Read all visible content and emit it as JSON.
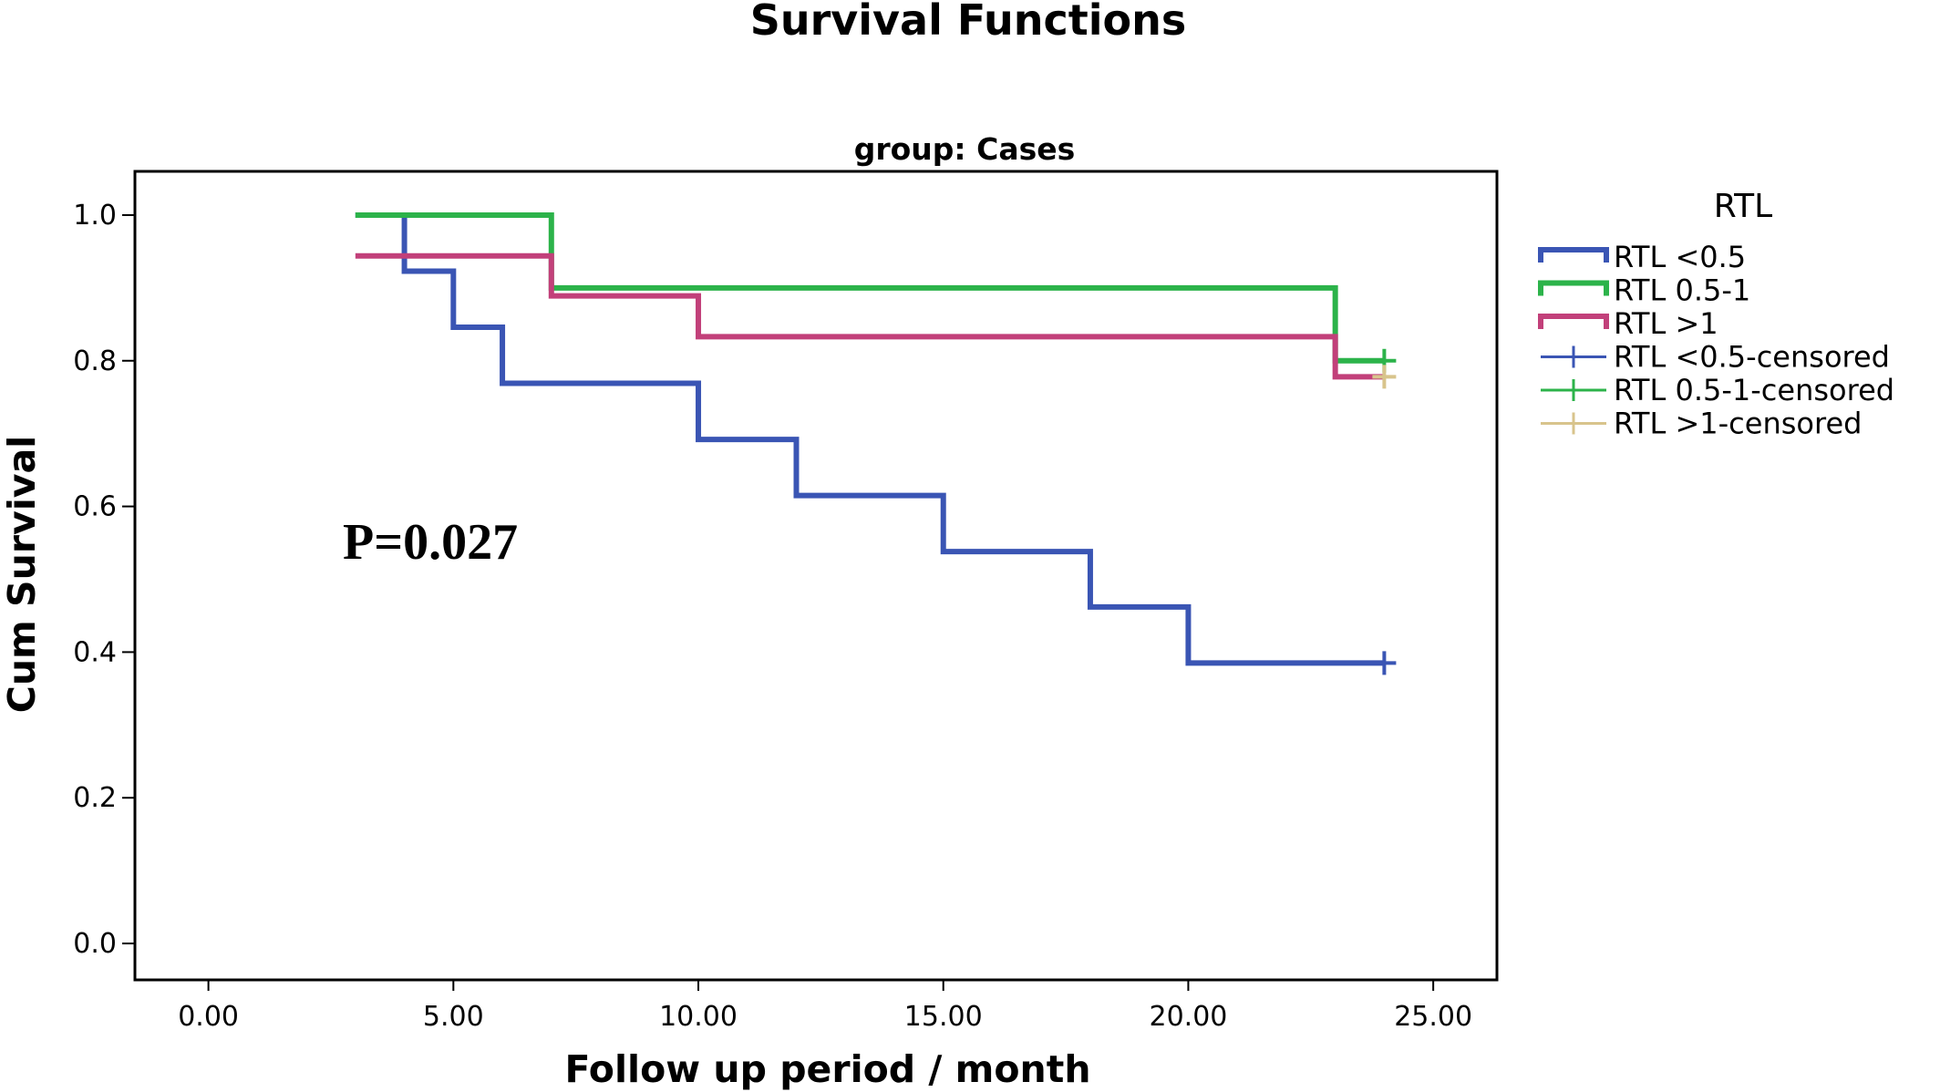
{
  "chart_data": {
    "type": "line",
    "title": "Survival Functions",
    "subtitle": "group: Cases",
    "xlabel": "Follow up period / month",
    "ylabel": "Cum Survival",
    "xlim": [
      -1.5,
      26.3
    ],
    "ylim": [
      -0.05,
      1.06
    ],
    "x_ticks": [
      0,
      5,
      10,
      15,
      20,
      25
    ],
    "x_tick_labels": [
      "0.00",
      "5.00",
      "10.00",
      "15.00",
      "20.00",
      "25.00"
    ],
    "y_ticks": [
      0.0,
      0.2,
      0.4,
      0.6,
      0.8,
      1.0
    ],
    "y_tick_labels": [
      "0.0",
      "0.2",
      "0.4",
      "0.6",
      "0.8",
      "1.0"
    ],
    "grid": false,
    "legend": {
      "title": "RTL",
      "position": "right"
    },
    "annotation": "P=0.027",
    "series": [
      {
        "name": "RTL <0.5",
        "color": "#3a55b4",
        "step_points": [
          [
            3,
            1.0
          ],
          [
            4,
            0.923
          ],
          [
            5,
            0.846
          ],
          [
            6,
            0.769
          ],
          [
            10,
            0.692
          ],
          [
            12,
            0.615
          ],
          [
            15,
            0.538
          ],
          [
            18,
            0.462
          ],
          [
            20,
            0.385
          ]
        ],
        "end_x": 24
      },
      {
        "name": "RTL 0.5-1",
        "color": "#2cb34a",
        "step_points": [
          [
            3,
            1.0
          ],
          [
            7,
            0.9
          ],
          [
            23,
            0.8
          ]
        ],
        "end_x": 24
      },
      {
        "name": "RTL >1",
        "color": "#c2407a",
        "step_points": [
          [
            3,
            0.944
          ],
          [
            7,
            0.889
          ],
          [
            10,
            0.833
          ],
          [
            23,
            0.778
          ]
        ],
        "end_x": 24
      }
    ],
    "censored": [
      {
        "name": "RTL <0.5-censored",
        "color": "#3a55b4",
        "points": [
          [
            24,
            0.385
          ]
        ]
      },
      {
        "name": "RTL 0.5-1-censored",
        "color": "#2cb34a",
        "points": [
          [
            24,
            0.8
          ]
        ]
      },
      {
        "name": "RTL >1-censored",
        "color": "#d8c48c",
        "points": [
          [
            24,
            0.778
          ]
        ]
      }
    ]
  }
}
